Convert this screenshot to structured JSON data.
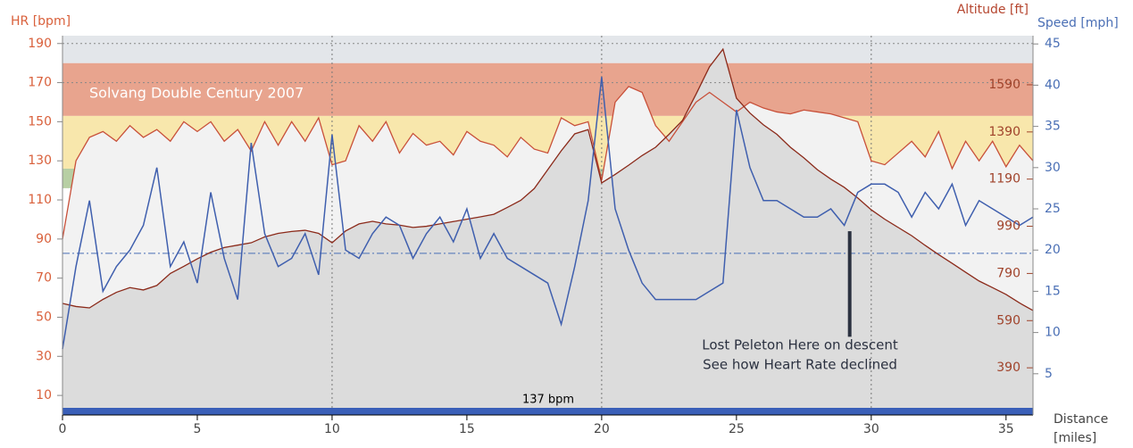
{
  "chart_data": {
    "type": "line",
    "title": "Solvang Double Century 2007",
    "x_label": "Distance",
    "x_unit": "[miles]",
    "x": [
      0,
      0.5,
      1,
      1.5,
      2,
      2.5,
      3,
      3.5,
      4,
      4.5,
      5,
      5.5,
      6,
      6.5,
      7,
      7.5,
      8,
      8.5,
      9,
      9.5,
      10,
      10.5,
      11,
      11.5,
      12,
      12.5,
      13,
      13.5,
      14,
      14.5,
      15,
      15.5,
      16,
      16.5,
      17,
      17.5,
      18,
      18.5,
      19,
      19.5,
      20,
      20.5,
      21,
      21.5,
      22,
      22.5,
      23,
      23.5,
      24,
      24.5,
      25,
      25.5,
      26,
      26.5,
      27,
      27.5,
      28,
      28.5,
      29,
      29.5,
      30,
      30.5,
      31,
      31.5,
      32,
      32.5,
      33,
      33.5,
      34,
      34.5,
      35,
      35.5,
      36
    ],
    "xlim": [
      0,
      36
    ],
    "xticks": [
      0,
      5,
      10,
      15,
      20,
      25,
      30,
      35
    ],
    "xgrid": [
      10,
      20,
      30
    ],
    "ylim": [
      0,
      194
    ],
    "yticks": [
      10,
      30,
      50,
      70,
      90,
      110,
      130,
      150,
      170,
      190
    ],
    "y2lim": [
      0,
      46
    ],
    "y2ticks": [
      5,
      10,
      15,
      20,
      25,
      30,
      35,
      40,
      45
    ],
    "y3lim": [
      190,
      1798
    ],
    "y3ticks": [
      390,
      590,
      790,
      990,
      1190,
      1390,
      1590
    ],
    "zones": [
      {
        "from": 116,
        "to": 126,
        "color": "#b7cfa4"
      },
      {
        "from": 126,
        "to": 153,
        "color": "#f8e7ac"
      },
      {
        "from": 153,
        "to": 180,
        "color": "#e8a48e"
      },
      {
        "from": 180,
        "to": 194,
        "color": "#e3e6ea"
      }
    ],
    "speed_avg": 19.6,
    "avg_hr": {
      "value": 137,
      "label": "137 bpm"
    },
    "annotation": {
      "x": 29.2,
      "y_range": [
        40,
        94
      ],
      "lines": [
        "Lost Peleton Here on descent",
        "See how Heart Rate declined"
      ]
    },
    "series": [
      {
        "name": "HR [bpm]",
        "color": "#c8503a",
        "values": [
          90,
          130,
          142,
          145,
          140,
          148,
          142,
          146,
          140,
          150,
          145,
          150,
          140,
          146,
          135,
          150,
          138,
          150,
          140,
          152,
          128,
          130,
          148,
          140,
          150,
          134,
          144,
          138,
          140,
          133,
          145,
          140,
          138,
          132,
          142,
          136,
          134,
          152,
          148,
          150,
          120,
          160,
          168,
          165,
          148,
          140,
          150,
          160,
          165,
          160,
          155,
          160,
          157,
          155,
          154,
          156,
          155,
          154,
          152,
          150,
          130,
          128,
          134,
          140,
          132,
          145,
          126,
          140,
          130,
          140,
          127,
          138,
          130
        ]
      },
      {
        "name": "Altitude [ft]",
        "axis": "y3",
        "color": "#8b2a1a",
        "values": [
          663,
          650,
          644,
          680,
          710,
          730,
          720,
          739,
          790,
          820,
          852,
          880,
          900,
          910,
          920,
          945,
          960,
          968,
          973,
          960,
          920,
          970,
          1000,
          1011,
          1000,
          995,
          985,
          990,
          1000,
          1010,
          1020,
          1030,
          1041,
          1070,
          1100,
          1150,
          1230,
          1310,
          1382,
          1400,
          1174,
          1210,
          1249,
          1290,
          1325,
          1380,
          1439,
          1550,
          1666,
          1741,
          1533,
          1470,
          1420,
          1380,
          1325,
          1280,
          1230,
          1190,
          1155,
          1110,
          1060,
          1020,
          985,
          950,
          909,
          870,
          833,
          795,
          758,
          730,
          701,
          665,
          633
        ]
      },
      {
        "name": "Speed [mph]",
        "axis": "y2",
        "color": "#3f5fae",
        "values": [
          8,
          18,
          26,
          15,
          18,
          20,
          23,
          30,
          18,
          21,
          16,
          27,
          19,
          14,
          33,
          22,
          18,
          19,
          22,
          17,
          34,
          20,
          19,
          22,
          24,
          23,
          19,
          22,
          24,
          21,
          25,
          19,
          22,
          19,
          18,
          17,
          16,
          11,
          18,
          26,
          41,
          25,
          20,
          16,
          14,
          14,
          14,
          14,
          15,
          16,
          37,
          30,
          26,
          26,
          25,
          24,
          24,
          25,
          23,
          27,
          28,
          28,
          27,
          24,
          27,
          25,
          28,
          23,
          26,
          25,
          24,
          23,
          24
        ]
      }
    ]
  }
}
